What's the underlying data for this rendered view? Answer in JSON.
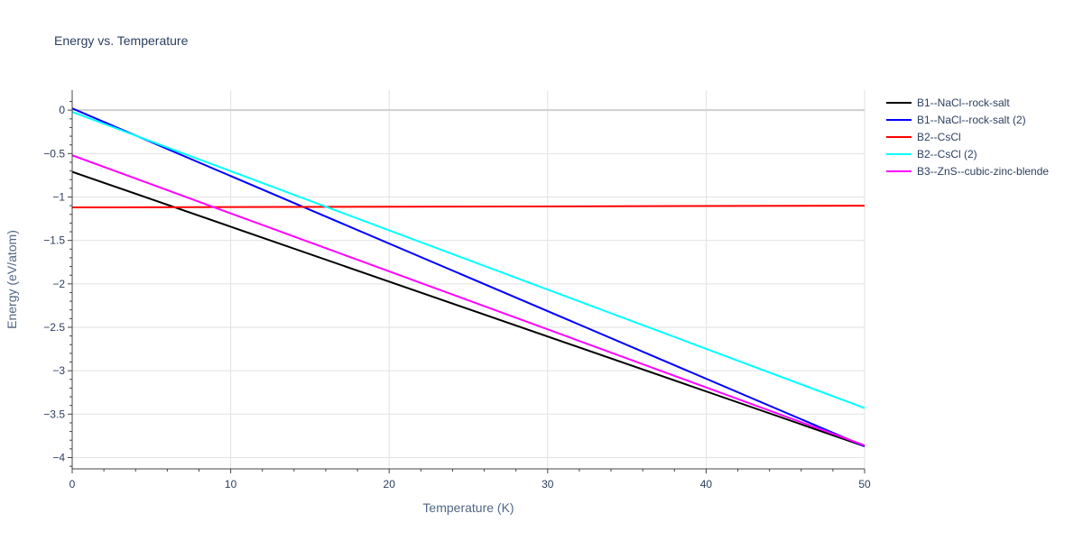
{
  "chart_data": {
    "type": "line",
    "title": "Energy vs. Temperature",
    "xlabel": "Temperature (K)",
    "ylabel": "Energy (eV/atom)",
    "xlim": [
      0,
      50
    ],
    "ylim": [
      -4.13,
      0.23
    ],
    "x_ticks": [
      0,
      10,
      20,
      30,
      40,
      50
    ],
    "y_ticks": [
      0,
      -0.5,
      -1,
      -1.5,
      -2,
      -2.5,
      -3,
      -3.5,
      -4
    ],
    "y_tick_labels": [
      "0",
      "−0.5",
      "−1",
      "−1.5",
      "−2",
      "−2.5",
      "−3",
      "−3.5",
      "−4"
    ],
    "grid": true,
    "legend_position": "top-right",
    "series": [
      {
        "name": "B1--NaCl--rock-salt",
        "color": "#000000",
        "x": [
          0,
          50
        ],
        "y": [
          -0.71,
          -3.87
        ]
      },
      {
        "name": "B1--NaCl--rock-salt (2)",
        "color": "#0000ff",
        "x": [
          0,
          50
        ],
        "y": [
          0.02,
          -3.87
        ]
      },
      {
        "name": "B2--CsCl",
        "color": "#ff0000",
        "x": [
          0,
          50
        ],
        "y": [
          -1.12,
          -1.1
        ]
      },
      {
        "name": "B2--CsCl (2)",
        "color": "#00ffff",
        "x": [
          0,
          50
        ],
        "y": [
          -0.02,
          -3.43
        ]
      },
      {
        "name": "B3--ZnS--cubic-zinc-blende",
        "color": "#ff00ff",
        "x": [
          0,
          50
        ],
        "y": [
          -0.52,
          -3.86
        ]
      }
    ]
  }
}
